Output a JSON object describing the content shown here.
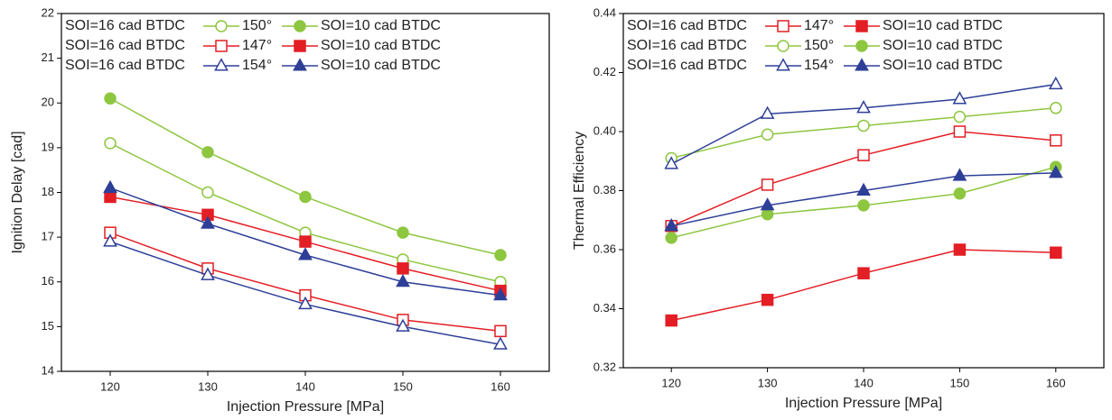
{
  "chart_data": [
    {
      "type": "line",
      "x_label": "Injection Pressure [MPa]",
      "y_label": "Ignition Delay [cad]",
      "x": [
        120,
        130,
        140,
        150,
        160
      ],
      "xlim": [
        115,
        165
      ],
      "xticks": [
        120,
        130,
        140,
        150,
        160
      ],
      "ylim": [
        14,
        22
      ],
      "yticks": [
        14,
        15,
        16,
        17,
        18,
        19,
        20,
        21,
        22
      ],
      "legend_rows": [
        "150°",
        "147°",
        "154°"
      ],
      "series": [
        {
          "name": "SOI=16 cad BTDC",
          "color": "#8dc63f",
          "marker": "circle",
          "filled": false,
          "values": [
            19.1,
            18.0,
            17.1,
            16.5,
            16.0
          ]
        },
        {
          "name": "SOI=10 cad BTDC",
          "color": "#8dc63f",
          "marker": "circle",
          "filled": true,
          "values": [
            20.1,
            18.9,
            17.9,
            17.1,
            16.6
          ]
        },
        {
          "name": "SOI=16 cad BTDC",
          "color": "#e31e24",
          "marker": "square",
          "filled": false,
          "values": [
            17.1,
            16.3,
            15.7,
            15.15,
            14.9
          ]
        },
        {
          "name": "SOI=10 cad BTDC",
          "color": "#e31e24",
          "marker": "square",
          "filled": true,
          "values": [
            17.9,
            17.5,
            16.9,
            16.3,
            15.8
          ]
        },
        {
          "name": "SOI=16 cad BTDC",
          "color": "#2e3f98",
          "marker": "triangle",
          "filled": false,
          "values": [
            16.9,
            16.15,
            15.5,
            15.0,
            14.6
          ]
        },
        {
          "name": "SOI=10 cad BTDC",
          "color": "#2e3f98",
          "marker": "triangle",
          "filled": true,
          "values": [
            18.1,
            17.3,
            16.6,
            16.0,
            15.7
          ]
        }
      ]
    },
    {
      "type": "line",
      "x_label": "Injection Pressure [MPa]",
      "y_label": "Thermal Efficiency",
      "x": [
        120,
        130,
        140,
        150,
        160
      ],
      "xlim": [
        115,
        165
      ],
      "xticks": [
        120,
        130,
        140,
        150,
        160
      ],
      "ylim": [
        0.32,
        0.44
      ],
      "yticks": [
        0.32,
        0.34,
        0.36,
        0.38,
        {
          "value": 0.4,
          "label": "0.40"
        },
        0.42,
        0.44
      ],
      "legend_rows": [
        "147°",
        "150°",
        "154°"
      ],
      "series": [
        {
          "name": "SOI=16 cad BTDC",
          "color": "#e31e24",
          "marker": "square",
          "filled": false,
          "values": [
            0.368,
            0.382,
            0.392,
            0.4,
            0.397
          ]
        },
        {
          "name": "SOI=10 cad BTDC",
          "color": "#e31e24",
          "marker": "square",
          "filled": true,
          "values": [
            0.336,
            0.343,
            0.352,
            0.36,
            0.359
          ]
        },
        {
          "name": "SOI=16 cad BTDC",
          "color": "#8dc63f",
          "marker": "circle",
          "filled": false,
          "values": [
            0.391,
            0.399,
            0.402,
            0.405,
            0.408
          ]
        },
        {
          "name": "SOI=10 cad BTDC",
          "color": "#8dc63f",
          "marker": "circle",
          "filled": true,
          "values": [
            0.364,
            0.372,
            0.375,
            0.379,
            0.388
          ]
        },
        {
          "name": "SOI=16 cad BTDC",
          "color": "#2e3f98",
          "marker": "triangle",
          "filled": false,
          "values": [
            0.389,
            0.406,
            0.408,
            0.411,
            0.416
          ]
        },
        {
          "name": "SOI=10 cad BTDC",
          "color": "#2e3f98",
          "marker": "triangle",
          "filled": true,
          "values": [
            0.368,
            0.375,
            0.38,
            0.385,
            0.386
          ]
        }
      ]
    }
  ]
}
